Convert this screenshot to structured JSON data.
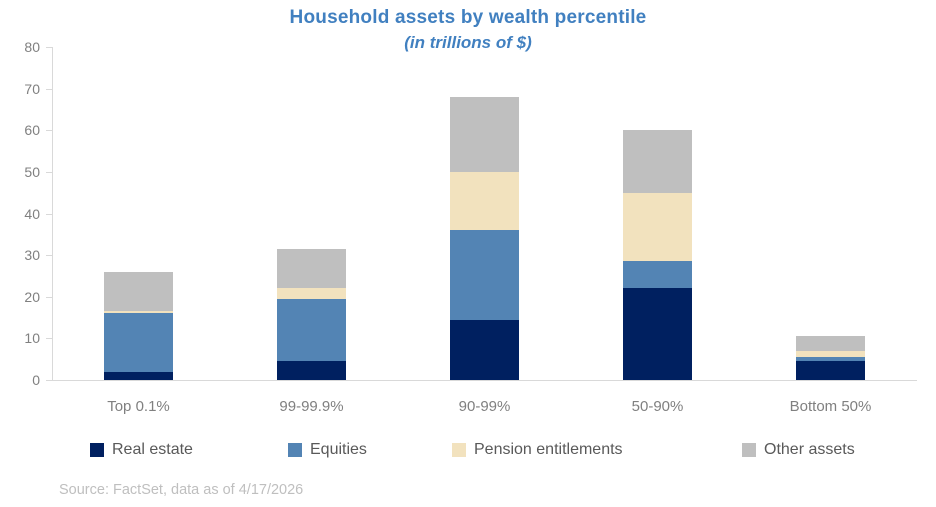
{
  "title": "Household assets by wealth percentile",
  "subtitle": "(in trillions of $)",
  "source_note": "Source: FactSet, data as of 4/17/2026",
  "colors": {
    "title_text": "#4180C0",
    "axis_label_text": "#808080",
    "category_label_text": "#808080",
    "legend_text": "#595959",
    "source_text": "#BFBFBF",
    "axis_line": "#D9D9D9"
  },
  "chart_data": {
    "type": "bar",
    "stacked": true,
    "grid": false,
    "legend_position": "bottom",
    "title": "Household assets by wealth percentile",
    "subtitle": "(in trillions of $)",
    "xlabel": "",
    "ylabel": "",
    "ylim": [
      0,
      80
    ],
    "ytick_interval": 10,
    "ytick_labels": [
      "0",
      "10",
      "20",
      "30",
      "40",
      "50",
      "60",
      "70",
      "80"
    ],
    "categories": [
      "Top 0.1%",
      "99-99.9%",
      "90-99%",
      "50-90%",
      "Bottom 50%"
    ],
    "series": [
      {
        "name": "Real estate",
        "color": "#002060",
        "values": [
          2,
          4.5,
          14.5,
          22,
          4.5
        ]
      },
      {
        "name": "Equities",
        "color": "#5384B4",
        "values": [
          14,
          15,
          21.5,
          6.5,
          1
        ]
      },
      {
        "name": "Pension entitlements",
        "color": "#F2E2BE",
        "values": [
          0.5,
          2.5,
          14,
          16.5,
          1.5
        ]
      },
      {
        "name": "Other assets",
        "color": "#BFBFBF",
        "values": [
          9.5,
          9.5,
          18,
          15,
          3.5
        ]
      }
    ],
    "totals": [
      26,
      31.5,
      68,
      60,
      10.5
    ]
  }
}
